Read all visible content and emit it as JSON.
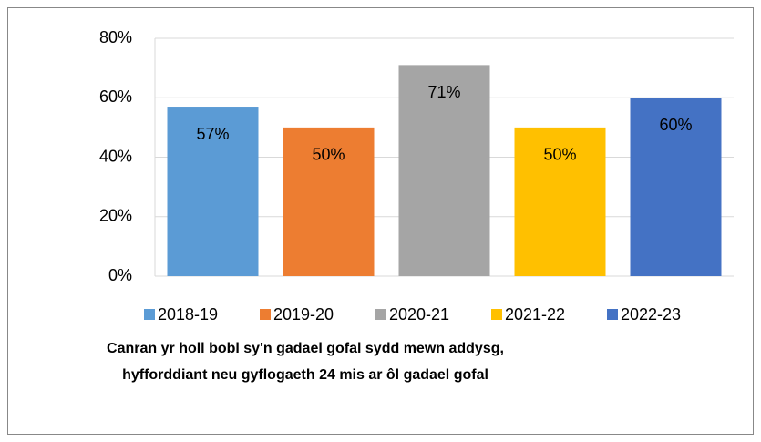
{
  "chart_data": {
    "type": "bar",
    "title": [
      "Canran yr holl bobl sy'n gadael gofal sydd mewn addysg,",
      "hyfforddiant neu gyflogaeth 24 mis ar ôl gadael gofal"
    ],
    "series": [
      {
        "name": "2018-19",
        "color": "#5b9bd5",
        "values": [
          57
        ],
        "value_labels": [
          "57%"
        ]
      },
      {
        "name": "2019-20",
        "color": "#ed7d31",
        "values": [
          50
        ],
        "value_labels": [
          "50%"
        ]
      },
      {
        "name": "2020-21",
        "color": "#a5a5a5",
        "values": [
          71
        ],
        "value_labels": [
          "71%"
        ]
      },
      {
        "name": "2021-22",
        "color": "#ffc000",
        "values": [
          50
        ],
        "value_labels": [
          "50%"
        ]
      },
      {
        "name": "2022-23",
        "color": "#4472c4",
        "values": [
          60
        ],
        "value_labels": [
          "60%"
        ]
      }
    ],
    "ylim": [
      0,
      80
    ],
    "yticks": [
      {
        "value": 0,
        "label": "0%"
      },
      {
        "value": 20,
        "label": "20%"
      },
      {
        "value": 40,
        "label": "40%"
      },
      {
        "value": 60,
        "label": "60%"
      },
      {
        "value": 80,
        "label": "80%"
      }
    ],
    "grid": true,
    "legend": "bottom"
  }
}
